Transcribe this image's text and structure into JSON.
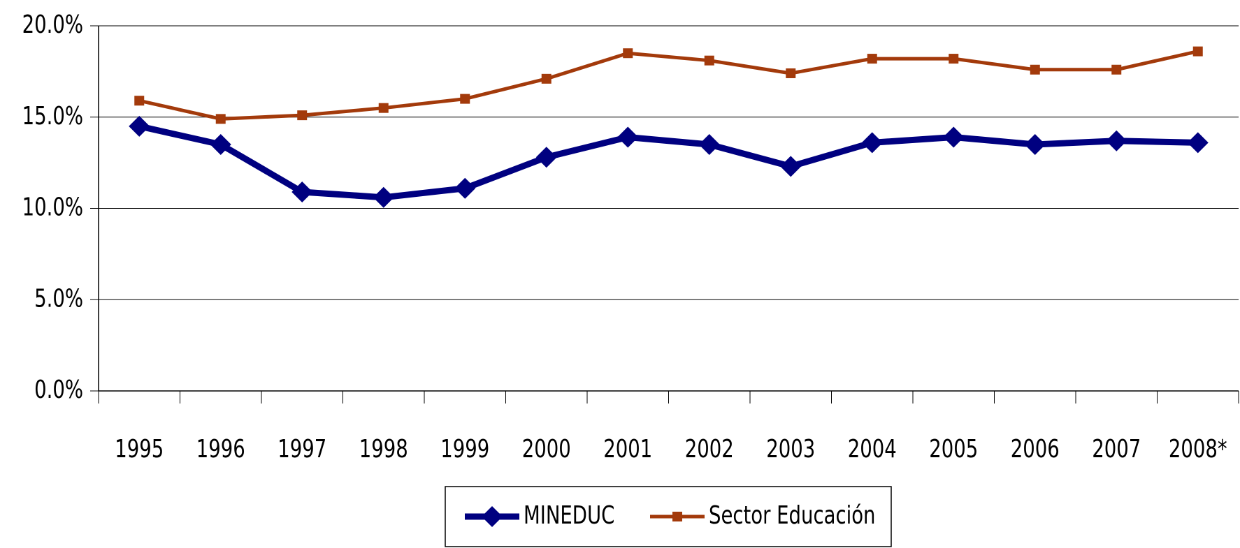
{
  "chart_data": {
    "type": "line",
    "categories": [
      "1995",
      "1996",
      "1997",
      "1998",
      "1999",
      "2000",
      "2001",
      "2002",
      "2003",
      "2004",
      "2005",
      "2006",
      "2007",
      "2008*"
    ],
    "series": [
      {
        "name": "MINEDUC",
        "color": "#000080",
        "marker": "diamond",
        "values": [
          14.5,
          13.5,
          10.9,
          10.6,
          11.1,
          12.8,
          13.9,
          13.5,
          12.3,
          13.6,
          13.9,
          13.5,
          13.7,
          13.6
        ]
      },
      {
        "name": "Sector Educación",
        "color": "#a33a0b",
        "marker": "square",
        "values": [
          15.9,
          14.9,
          15.1,
          15.5,
          16.0,
          17.1,
          18.5,
          18.1,
          17.4,
          18.2,
          18.2,
          17.6,
          17.6,
          18.6
        ]
      }
    ],
    "ylim": [
      0,
      20
    ],
    "yticks": [
      {
        "value": 0,
        "label": "0.0%"
      },
      {
        "value": 5,
        "label": "5.0%"
      },
      {
        "value": 10,
        "label": "10.0%"
      },
      {
        "value": 15,
        "label": "15.0%"
      },
      {
        "value": 20,
        "label": "20.0%"
      }
    ],
    "grid": true,
    "legend": "bottom"
  }
}
